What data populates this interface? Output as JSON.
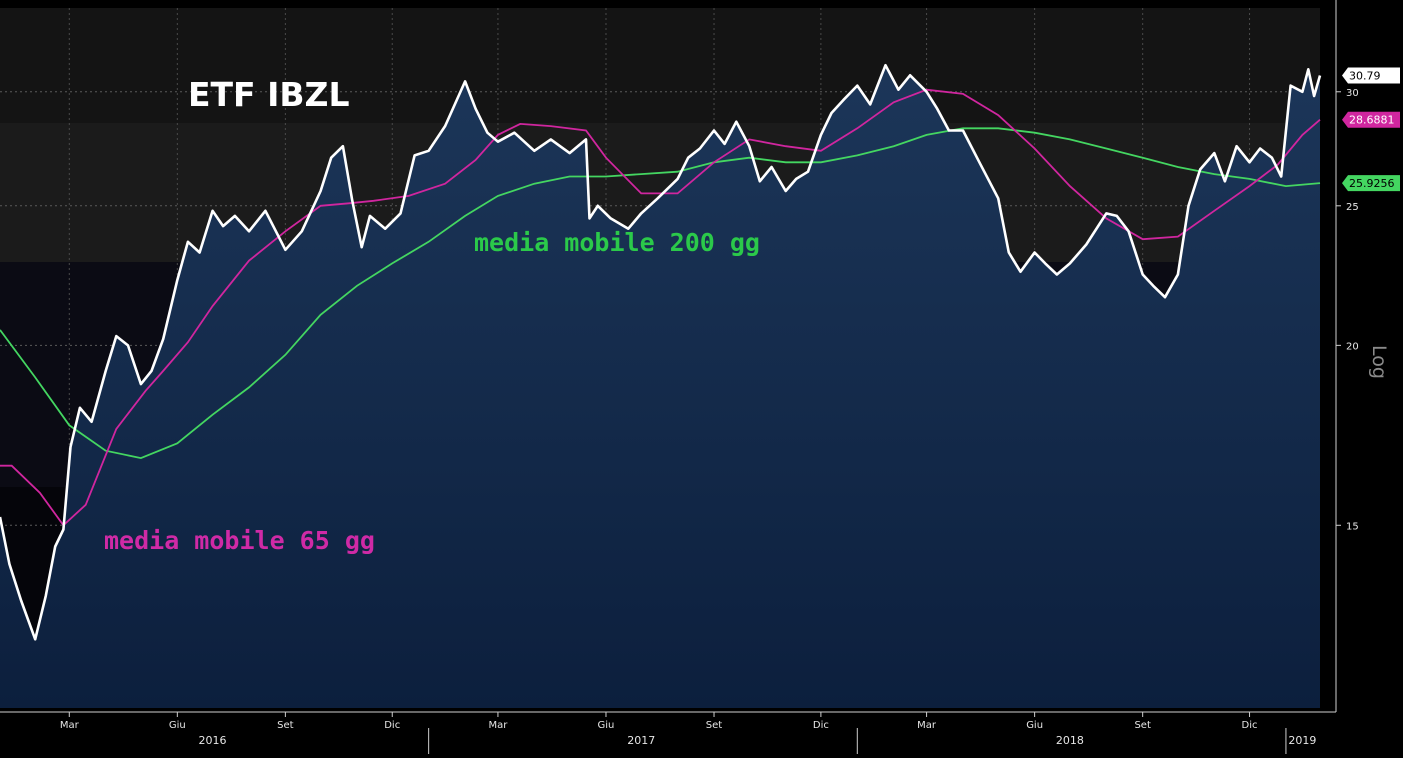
{
  "chart_data": {
    "type": "line",
    "title": "ETF IBZL",
    "y_scale": "log",
    "y_scale_label": "Log",
    "ylim": [
      11.2,
      34.3
    ],
    "y_ticks": [
      15,
      20,
      25,
      30
    ],
    "x_range": [
      "2016-01-02",
      "2019-01-30"
    ],
    "x_ticks": [
      {
        "label": "Mar",
        "date": "2016-03-01"
      },
      {
        "label": "Giu",
        "date": "2016-06-01"
      },
      {
        "label": "Set",
        "date": "2016-09-01"
      },
      {
        "label": "Dic",
        "date": "2016-12-01"
      },
      {
        "label": "Mar",
        "date": "2017-03-01"
      },
      {
        "label": "Giu",
        "date": "2017-06-01"
      },
      {
        "label": "Set",
        "date": "2017-09-01"
      },
      {
        "label": "Dic",
        "date": "2017-12-01"
      },
      {
        "label": "Mar",
        "date": "2018-03-01"
      },
      {
        "label": "Giu",
        "date": "2018-06-01"
      },
      {
        "label": "Set",
        "date": "2018-09-01"
      },
      {
        "label": "Dic",
        "date": "2018-12-01"
      }
    ],
    "year_labels": [
      {
        "label": "2016",
        "date": "2016-07-01"
      },
      {
        "label": "2017",
        "date": "2017-07-01"
      },
      {
        "label": "2018",
        "date": "2018-07-01"
      },
      {
        "label": "2019",
        "date": "2019-01-15"
      }
    ],
    "year_separators": [
      "2017-01-01",
      "2018-01-01",
      "2019-01-01"
    ],
    "grid": true,
    "series": [
      {
        "color": "#ffffff",
        "last_value": "30.79",
        "x": [
          "2016-01-02",
          "2016-01-10",
          "2016-01-20",
          "2016-02-01",
          "2016-02-10",
          "2016-02-18",
          "2016-02-25",
          "2016-03-02",
          "2016-03-10",
          "2016-03-20",
          "2016-04-01",
          "2016-04-10",
          "2016-04-20",
          "2016-05-01",
          "2016-05-10",
          "2016-05-20",
          "2016-06-01",
          "2016-06-10",
          "2016-06-20",
          "2016-07-01",
          "2016-07-10",
          "2016-07-20",
          "2016-08-01",
          "2016-08-15",
          "2016-09-01",
          "2016-09-15",
          "2016-10-01",
          "2016-10-10",
          "2016-10-20",
          "2016-10-28",
          "2016-11-05",
          "2016-11-12",
          "2016-11-25",
          "2016-12-08",
          "2016-12-20",
          "2017-01-01",
          "2017-01-15",
          "2017-02-01",
          "2017-02-10",
          "2017-02-20",
          "2017-03-01",
          "2017-03-15",
          "2017-04-01",
          "2017-04-15",
          "2017-05-01",
          "2017-05-15",
          "2017-05-18",
          "2017-05-25",
          "2017-06-05",
          "2017-06-20",
          "2017-07-01",
          "2017-07-15",
          "2017-08-01",
          "2017-08-10",
          "2017-08-20",
          "2017-09-01",
          "2017-09-10",
          "2017-09-20",
          "2017-10-01",
          "2017-10-10",
          "2017-10-20",
          "2017-11-01",
          "2017-11-10",
          "2017-11-20",
          "2017-12-01",
          "2017-12-10",
          "2017-12-20",
          "2018-01-01",
          "2018-01-12",
          "2018-01-25",
          "2018-02-05",
          "2018-02-15",
          "2018-03-01",
          "2018-03-10",
          "2018-03-20",
          "2018-04-01",
          "2018-04-15",
          "2018-05-01",
          "2018-05-10",
          "2018-05-20",
          "2018-06-01",
          "2018-06-10",
          "2018-06-20",
          "2018-07-01",
          "2018-07-15",
          "2018-08-01",
          "2018-08-10",
          "2018-08-20",
          "2018-09-01",
          "2018-09-10",
          "2018-09-20",
          "2018-10-01",
          "2018-10-10",
          "2018-10-20",
          "2018-11-01",
          "2018-11-10",
          "2018-11-20",
          "2018-12-01",
          "2018-12-10",
          "2018-12-20",
          "2018-12-28",
          "2019-01-05",
          "2019-01-15",
          "2019-01-20",
          "2019-01-25",
          "2019-01-30"
        ],
        "y": [
          15.2,
          14.1,
          13.3,
          12.5,
          13.4,
          14.5,
          14.9,
          17.0,
          18.1,
          17.7,
          19.2,
          20.3,
          20.0,
          18.8,
          19.2,
          20.2,
          22.2,
          23.6,
          23.2,
          24.8,
          24.2,
          24.6,
          24.0,
          24.8,
          23.3,
          24.0,
          25.6,
          27.0,
          27.5,
          25.2,
          23.4,
          24.6,
          24.1,
          24.7,
          27.1,
          27.3,
          28.4,
          30.5,
          29.2,
          28.1,
          27.7,
          28.1,
          27.3,
          27.8,
          27.2,
          27.8,
          24.5,
          25.0,
          24.5,
          24.1,
          24.7,
          25.3,
          26.1,
          27.0,
          27.4,
          28.2,
          27.6,
          28.6,
          27.5,
          26.0,
          26.6,
          25.6,
          26.1,
          26.4,
          28.0,
          29.0,
          29.6,
          30.3,
          29.4,
          31.3,
          30.1,
          30.8,
          30.0,
          29.2,
          28.2,
          28.2,
          26.8,
          25.3,
          23.2,
          22.5,
          23.2,
          22.8,
          22.4,
          22.8,
          23.5,
          24.7,
          24.6,
          24.0,
          22.4,
          22.0,
          21.6,
          22.4,
          25.0,
          26.5,
          27.2,
          26.0,
          27.5,
          26.8,
          27.4,
          27.0,
          26.2,
          30.3,
          30.0,
          31.1,
          29.8,
          30.79
        ]
      },
      {
        "name": "media mobile 65 gg",
        "color": "#d0269f",
        "last_value": "28.6881",
        "x": [
          "2016-01-02",
          "2016-01-12",
          "2016-02-05",
          "2016-02-25",
          "2016-03-15",
          "2016-04-10",
          "2016-05-05",
          "2016-05-20",
          "2016-06-10",
          "2016-07-01",
          "2016-08-01",
          "2016-09-01",
          "2016-10-01",
          "2016-10-25",
          "2016-11-15",
          "2016-12-15",
          "2017-01-15",
          "2017-02-10",
          "2017-03-01",
          "2017-03-20",
          "2017-04-15",
          "2017-05-15",
          "2017-06-01",
          "2017-07-01",
          "2017-08-01",
          "2017-09-01",
          "2017-10-01",
          "2017-11-01",
          "2017-12-01",
          "2018-01-01",
          "2018-02-01",
          "2018-03-01",
          "2018-04-01",
          "2018-05-01",
          "2018-06-01",
          "2018-07-01",
          "2018-08-01",
          "2018-09-01",
          "2018-10-01",
          "2018-11-01",
          "2018-12-01",
          "2018-12-25",
          "2019-01-15",
          "2019-01-30"
        ],
        "y": [
          16.5,
          16.5,
          15.8,
          15.0,
          15.5,
          17.5,
          18.6,
          19.2,
          20.1,
          21.3,
          22.9,
          24.0,
          25.0,
          25.1,
          25.2,
          25.4,
          25.9,
          26.9,
          28.0,
          28.5,
          28.4,
          28.2,
          27.0,
          25.5,
          25.5,
          26.8,
          27.8,
          27.5,
          27.3,
          28.3,
          29.5,
          30.1,
          29.9,
          28.9,
          27.4,
          25.8,
          24.5,
          23.7,
          23.8,
          24.8,
          25.8,
          26.7,
          28.0,
          28.6881
        ]
      },
      {
        "name": "media mobile 200 gg",
        "color": "#44d661",
        "last_value": "25.9256",
        "x": [
          "2016-01-02",
          "2016-02-01",
          "2016-03-01",
          "2016-04-01",
          "2016-05-01",
          "2016-06-01",
          "2016-07-01",
          "2016-08-01",
          "2016-09-01",
          "2016-10-01",
          "2016-11-01",
          "2016-12-01",
          "2017-01-01",
          "2017-02-01",
          "2017-03-01",
          "2017-04-01",
          "2017-05-01",
          "2017-06-01",
          "2017-07-01",
          "2017-08-01",
          "2017-09-01",
          "2017-10-01",
          "2017-11-01",
          "2017-12-01",
          "2018-01-01",
          "2018-02-01",
          "2018-03-01",
          "2018-04-01",
          "2018-05-01",
          "2018-06-01",
          "2018-07-01",
          "2018-08-01",
          "2018-09-01",
          "2018-10-01",
          "2018-11-01",
          "2018-12-01",
          "2019-01-01",
          "2019-01-30"
        ],
        "y": [
          20.5,
          19.0,
          17.6,
          16.9,
          16.7,
          17.1,
          17.9,
          18.7,
          19.7,
          21.0,
          22.0,
          22.8,
          23.6,
          24.6,
          25.4,
          25.9,
          26.2,
          26.2,
          26.3,
          26.4,
          26.8,
          27.0,
          26.8,
          26.8,
          27.1,
          27.5,
          28.0,
          28.3,
          28.3,
          28.1,
          27.8,
          27.4,
          27.0,
          26.6,
          26.3,
          26.1,
          25.8,
          25.9256
        ]
      }
    ]
  },
  "annotations": {
    "ma65_label": "media mobile 65 gg",
    "ma200_label": "media mobile 200 gg"
  },
  "colors": {
    "price": "#ffffff",
    "ma65": "#d0269f",
    "ma200": "#44d661",
    "area_fill": "#16294a",
    "background": "#000000"
  }
}
